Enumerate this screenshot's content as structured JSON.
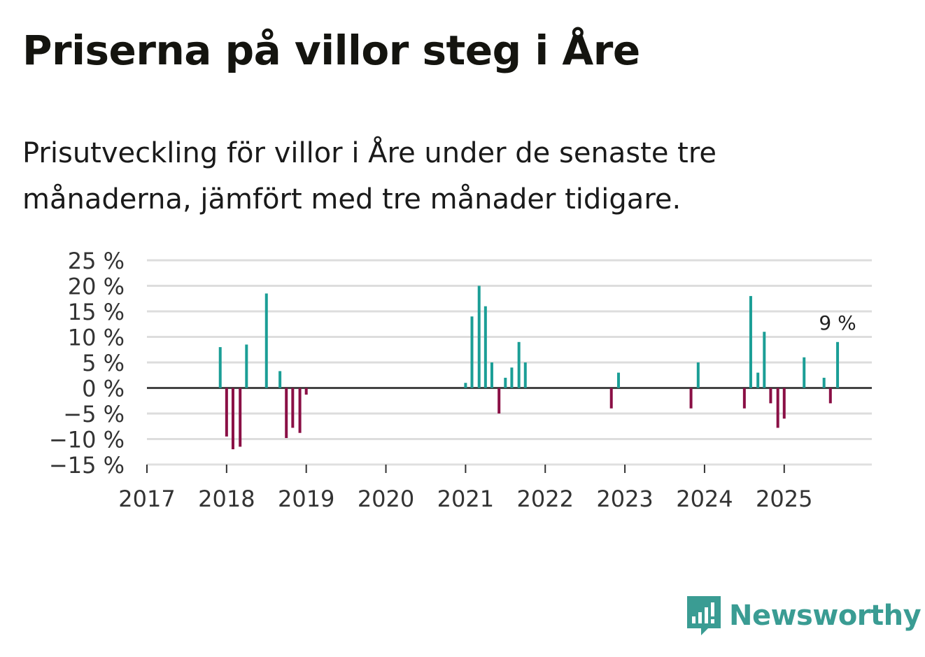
{
  "title": "Priserna på villor steg i Åre",
  "subtitle": "Prisutveckling för villor i Åre under de senaste tre månaderna, jämfört med tre månader tidigare.",
  "brand": {
    "name": "Newsworthy",
    "color": "#3a9c93",
    "icon": "bar-chart-speech-icon"
  },
  "colors": {
    "positive": "#1b9e96",
    "negative": "#8a0f45",
    "grid": "#dddddd",
    "zero": "#444444",
    "text": "#333333"
  },
  "chart_data": {
    "type": "bar",
    "title": "Priserna på villor steg i Åre",
    "xlabel": "",
    "ylabel": "",
    "ylim": [
      -15,
      25
    ],
    "xlim": [
      2017,
      2026.1
    ],
    "grid": true,
    "y_ticks": [
      25,
      20,
      15,
      10,
      5,
      0,
      -5,
      -10,
      -15
    ],
    "y_tick_labels": [
      "25 %",
      "20 %",
      "15 %",
      "10 %",
      "5 %",
      "0 %",
      "−5 %",
      "−10 %",
      "−15 %"
    ],
    "x_ticks": [
      2017,
      2018,
      2019,
      2020,
      2021,
      2022,
      2023,
      2024,
      2025
    ],
    "x_tick_labels": [
      "2017",
      "2018",
      "2019",
      "2020",
      "2021",
      "2022",
      "2023",
      "2024",
      "2025"
    ],
    "annotation": {
      "x": 2025.67,
      "text": "9 %"
    },
    "points": [
      {
        "x": 2017.92,
        "value": 8
      },
      {
        "x": 2018.0,
        "value": -9.5
      },
      {
        "x": 2018.08,
        "value": -12
      },
      {
        "x": 2018.17,
        "value": -11.5
      },
      {
        "x": 2018.25,
        "value": 8.5
      },
      {
        "x": 2018.5,
        "value": 18.5
      },
      {
        "x": 2018.67,
        "value": 3.3
      },
      {
        "x": 2018.75,
        "value": -9.8
      },
      {
        "x": 2018.83,
        "value": -7.8
      },
      {
        "x": 2018.92,
        "value": -8.8
      },
      {
        "x": 2019.0,
        "value": -1.3
      },
      {
        "x": 2021.0,
        "value": 1
      },
      {
        "x": 2021.08,
        "value": 14
      },
      {
        "x": 2021.17,
        "value": 20
      },
      {
        "x": 2021.25,
        "value": 16
      },
      {
        "x": 2021.33,
        "value": 5
      },
      {
        "x": 2021.42,
        "value": -5
      },
      {
        "x": 2021.5,
        "value": 2
      },
      {
        "x": 2021.58,
        "value": 4
      },
      {
        "x": 2021.67,
        "value": 9
      },
      {
        "x": 2021.75,
        "value": 5
      },
      {
        "x": 2022.83,
        "value": -4
      },
      {
        "x": 2022.92,
        "value": 3
      },
      {
        "x": 2023.83,
        "value": -4
      },
      {
        "x": 2023.92,
        "value": 5
      },
      {
        "x": 2024.5,
        "value": -4
      },
      {
        "x": 2024.58,
        "value": 18
      },
      {
        "x": 2024.67,
        "value": 3
      },
      {
        "x": 2024.75,
        "value": 11
      },
      {
        "x": 2024.83,
        "value": -3
      },
      {
        "x": 2024.92,
        "value": -7.8
      },
      {
        "x": 2025.0,
        "value": -6
      },
      {
        "x": 2025.25,
        "value": 6
      },
      {
        "x": 2025.5,
        "value": 2
      },
      {
        "x": 2025.58,
        "value": -3
      },
      {
        "x": 2025.67,
        "value": 9
      }
    ]
  }
}
